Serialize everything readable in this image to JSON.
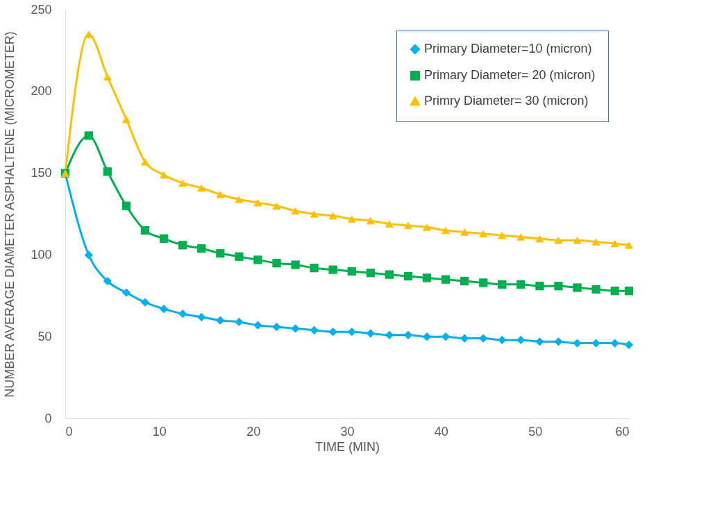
{
  "chart_data": {
    "type": "line",
    "xlabel": "TIME (MIN)",
    "ylabel": "NUMBER AVERAGE DIAMETER ASPHALTENE (MICROMETER)",
    "x": [
      0,
      2.5,
      4.5,
      6.5,
      8.5,
      10.5,
      12.5,
      14.5,
      16.5,
      18.5,
      20.5,
      22.5,
      24.5,
      26.5,
      28.5,
      30.5,
      32.5,
      34.5,
      36.5,
      38.5,
      40.5,
      42.5,
      44.5,
      46.5,
      48.5,
      50.5,
      52.5,
      54.5,
      56.5,
      58.5,
      60
    ],
    "series": [
      {
        "name": "Primary Diameter=10 (micron)",
        "color": "#00b0f0",
        "marker": "diamond",
        "values": [
          150,
          100,
          84,
          77,
          71,
          67,
          64,
          62,
          60,
          59,
          57,
          56,
          55,
          54,
          53,
          53,
          52,
          51,
          51,
          50,
          50,
          49,
          49,
          48,
          48,
          47,
          47,
          46,
          46,
          46,
          45
        ]
      },
      {
        "name": "Primary Diameter= 20 (micron)",
        "color": "#00b050",
        "marker": "square",
        "values": [
          150,
          173,
          151,
          130,
          115,
          110,
          106,
          104,
          101,
          99,
          97,
          95,
          94,
          92,
          91,
          90,
          89,
          88,
          87,
          86,
          85,
          84,
          83,
          82,
          82,
          81,
          81,
          80,
          79,
          78,
          78
        ]
      },
      {
        "name": "Primry Diameter= 30 (micron)",
        "color": "#ffc000",
        "marker": "triangle",
        "values": [
          150,
          235,
          209,
          183,
          157,
          149,
          144,
          141,
          137,
          134,
          132,
          130,
          127,
          125,
          124,
          122,
          121,
          119,
          118,
          117,
          115,
          114,
          113,
          112,
          111,
          110,
          109,
          109,
          108,
          107,
          106
        ]
      }
    ],
    "xlim": [
      0,
      60
    ],
    "xticks": [
      0,
      10,
      20,
      30,
      40,
      50,
      60
    ],
    "ylim": [
      0,
      250
    ],
    "yticks": [
      0,
      50,
      100,
      150,
      200,
      250
    ],
    "grid": false,
    "legend": "top right",
    "line_style": "solid"
  }
}
